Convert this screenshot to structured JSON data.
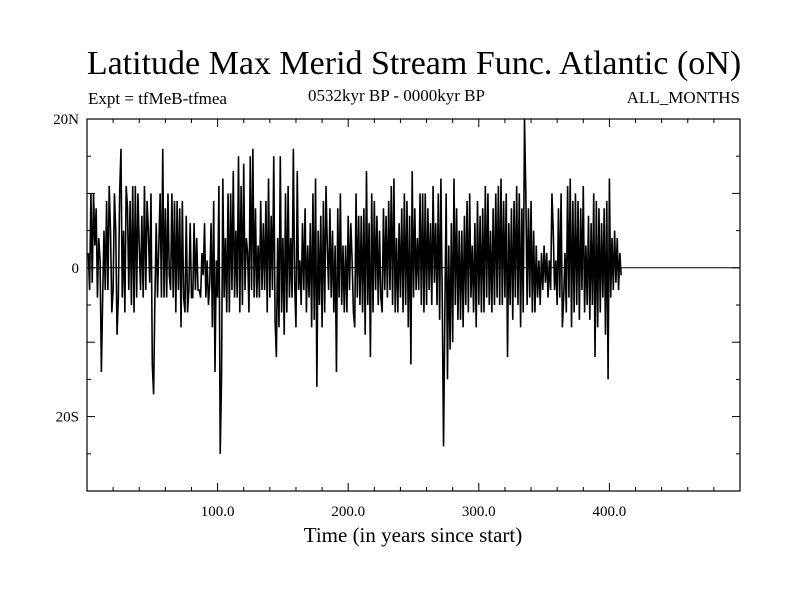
{
  "header": {
    "title": "Latitude Max Merid Stream Func. Atlantic (oN)",
    "experiment": "Expt = tfMeB-tfmea",
    "period": "0532kyr BP - 0000kyr BP",
    "months": "ALL_MONTHS"
  },
  "chart_data": {
    "type": "line",
    "title": "Latitude Max Merid Stream Func. Atlantic (oN)",
    "xlabel": "Time (in years since start)",
    "ylabel": "",
    "xlim": [
      0,
      500
    ],
    "ylim": [
      -30,
      20
    ],
    "x_ticks": [
      {
        "value": 100,
        "label": "100.0"
      },
      {
        "value": 200,
        "label": "200.0"
      },
      {
        "value": 300,
        "label": "300.0"
      },
      {
        "value": 400,
        "label": "400.0"
      }
    ],
    "y_ticks": [
      {
        "value": 20,
        "label": "20N"
      },
      {
        "value": 0,
        "label": "0"
      },
      {
        "value": -20,
        "label": "20S"
      }
    ],
    "reference_line": 0,
    "grid": false,
    "series": [
      {
        "color": "#000000",
        "x_start": 1,
        "x_step": 1,
        "values": [
          2,
          -3,
          10,
          -2,
          10,
          3,
          8,
          -4,
          4,
          1,
          -14,
          -4,
          5,
          -3,
          9,
          -3,
          11,
          5,
          -6,
          -3,
          10,
          5,
          -9,
          -4,
          10,
          16,
          -4,
          5,
          -6,
          11,
          8,
          -3,
          9,
          -5,
          11,
          -6,
          11,
          -4,
          10,
          3,
          -3,
          7,
          -4,
          11,
          -3,
          9,
          5,
          -2,
          10,
          -13,
          -17,
          -4,
          6,
          -4,
          3,
          10,
          -4,
          16,
          -4,
          8,
          -4,
          10,
          -1,
          -3,
          10,
          -4,
          9,
          -6,
          9,
          -3,
          8,
          -8,
          9,
          -4,
          -6,
          7,
          -6,
          -3,
          6,
          -4,
          -4,
          6,
          -3,
          4,
          -3,
          -3,
          -4,
          2,
          -1,
          6,
          -4,
          1,
          -5,
          -2,
          6,
          -8,
          9,
          -14,
          1,
          -4,
          11,
          -25,
          -15,
          12,
          -4,
          4,
          -6,
          10,
          -6,
          10,
          -3,
          13,
          -4,
          5,
          -4,
          15,
          -6,
          11,
          -5,
          14,
          -3,
          4,
          2,
          -6,
          15,
          -3,
          16,
          -4,
          8,
          -4,
          3,
          -4,
          9,
          -3,
          6,
          -3,
          9,
          -6,
          12,
          -4,
          7,
          -3,
          15,
          -7,
          -12,
          4,
          -8,
          15,
          -6,
          4,
          -9,
          10,
          -6,
          11,
          -4,
          4,
          -4,
          16,
          -2,
          -8,
          13,
          -3,
          1,
          -5,
          6,
          -3,
          8,
          -6,
          3,
          -4,
          6,
          -8,
          10,
          -7,
          12,
          -16,
          5,
          -5,
          7,
          -8,
          9,
          -6,
          11,
          3,
          -3,
          8,
          -4,
          5,
          -6,
          3,
          -14,
          8,
          -4,
          10,
          -5,
          3,
          -6,
          3,
          -6,
          7,
          -3,
          6,
          1,
          -6,
          -8,
          10,
          -4,
          7,
          -5,
          7,
          -6,
          8,
          -9,
          13,
          -5,
          6,
          -12,
          10,
          -6,
          9,
          -3,
          7,
          -5,
          5,
          -4,
          -6,
          8,
          -3,
          7,
          -4,
          9,
          -3,
          11,
          -5,
          12,
          -6,
          4,
          -6,
          6,
          -4,
          8,
          -6,
          10,
          -5,
          9,
          -8,
          7,
          -13,
          13,
          -4,
          8,
          -3,
          4,
          -3,
          10,
          -5,
          10,
          -6,
          10,
          -5,
          8,
          -3,
          6,
          -5,
          11,
          -2,
          6,
          -5,
          10,
          -7,
          12,
          -4,
          -24,
          -6,
          10,
          -15,
          3,
          -11,
          6,
          -10,
          12,
          -5,
          8,
          -7,
          5,
          -7,
          5,
          -8,
          7,
          -5,
          9,
          -6,
          10,
          -4,
          3,
          -6,
          6,
          -8,
          9,
          -5,
          7,
          -6,
          8,
          -6,
          11,
          -4,
          10,
          -5,
          5,
          -6,
          8,
          -5,
          10,
          -4,
          11,
          -5,
          12,
          -5,
          9,
          -4,
          10,
          -12,
          6,
          -5,
          8,
          -7,
          9,
          -4,
          11,
          -5,
          10,
          -8,
          8,
          -6,
          20,
          10,
          -5,
          8,
          -4,
          9,
          -6,
          5,
          -6,
          3,
          -4,
          1,
          -5,
          2,
          -3,
          3,
          -2,
          2,
          -4,
          1,
          -3,
          10,
          5,
          -3,
          1,
          -5,
          8,
          -4,
          10,
          -8,
          -4,
          2,
          -6,
          11,
          -4,
          12,
          -8,
          9,
          -6,
          10,
          -5,
          9,
          -7,
          8,
          -3,
          11,
          -6,
          3,
          -5,
          7,
          -7,
          6,
          -5,
          10,
          -12,
          9,
          -8,
          8,
          -6,
          6,
          -4,
          8,
          -9,
          9,
          -15,
          12,
          -4,
          4,
          -3,
          5,
          -2,
          4,
          -3,
          2,
          -1
        ]
      }
    ]
  }
}
